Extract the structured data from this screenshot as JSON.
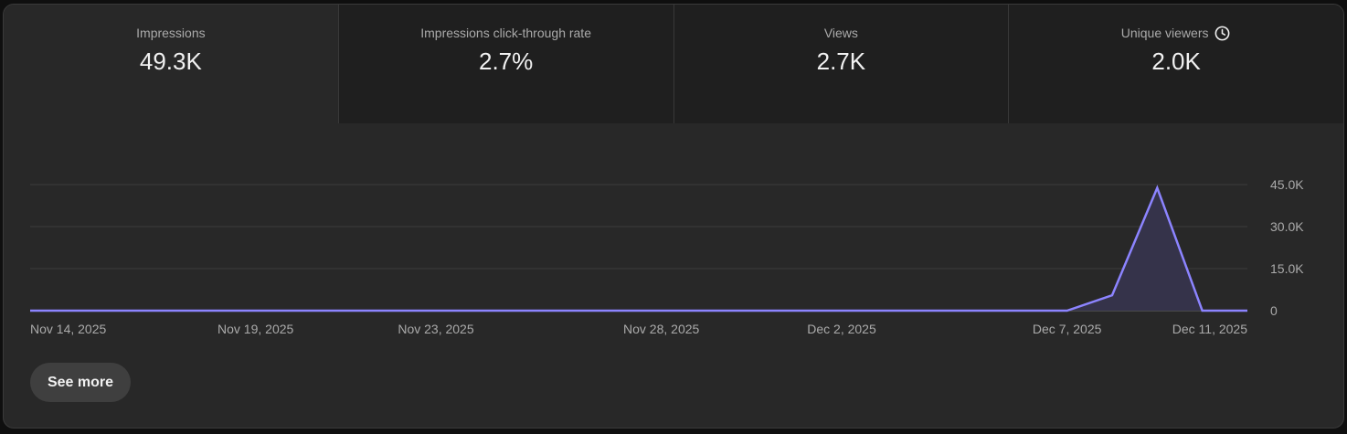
{
  "metrics": [
    {
      "label": "Impressions",
      "value": "49.3K"
    },
    {
      "label": "Impressions click-through rate",
      "value": "2.7%"
    },
    {
      "label": "Views",
      "value": "2.7K"
    },
    {
      "label": "Unique viewers",
      "value": "2.0K",
      "icon": "clock-icon"
    }
  ],
  "active_metric": "Impressions",
  "see_more_label": "See more",
  "colors": {
    "line": "#8c84ff",
    "fill": "#35334a",
    "grid": "#3d3d3d",
    "baseline": "#6b6b6b"
  },
  "chart_data": {
    "type": "area",
    "x_tick_labels": [
      "Nov 14, 2025",
      "Nov 19, 2025",
      "Nov 23, 2025",
      "Nov 28, 2025",
      "Dec 2, 2025",
      "Dec 7, 2025",
      "Dec 11, 2025"
    ],
    "y_tick_labels": [
      "45.0K",
      "30.0K",
      "15.0K",
      "0"
    ],
    "y_ticks": [
      45000,
      30000,
      15000,
      0
    ],
    "ylim": [
      0,
      45000
    ],
    "grid": true,
    "x": [
      "2025-11-14",
      "2025-11-15",
      "2025-11-16",
      "2025-11-17",
      "2025-11-18",
      "2025-11-19",
      "2025-11-20",
      "2025-11-21",
      "2025-11-22",
      "2025-11-23",
      "2025-11-24",
      "2025-11-25",
      "2025-11-26",
      "2025-11-27",
      "2025-11-28",
      "2025-11-29",
      "2025-11-30",
      "2025-12-01",
      "2025-12-02",
      "2025-12-03",
      "2025-12-04",
      "2025-12-05",
      "2025-12-06",
      "2025-12-07",
      "2025-12-08",
      "2025-12-09",
      "2025-12-10",
      "2025-12-11"
    ],
    "series": [
      {
        "values": [
          0,
          0,
          0,
          0,
          0,
          0,
          0,
          0,
          0,
          0,
          0,
          0,
          0,
          0,
          0,
          0,
          0,
          0,
          0,
          0,
          0,
          0,
          0,
          0,
          5500,
          43800,
          0,
          0
        ]
      }
    ]
  }
}
